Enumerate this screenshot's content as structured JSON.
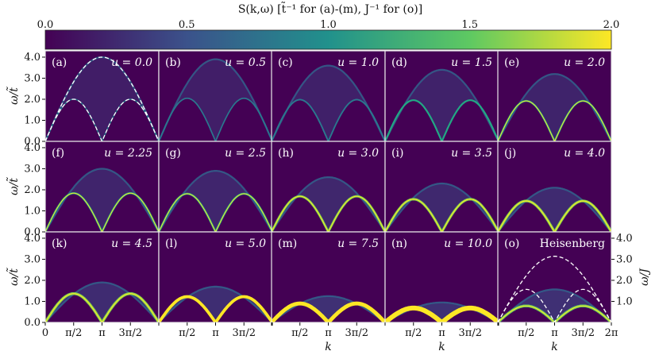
{
  "chart_data": {
    "type": "heatmap",
    "title": "S(k,ω) [t̃⁻¹ for (a)-(m), J⁻¹ for (o)]",
    "colorbar": {
      "range": [
        0.0,
        2.0
      ],
      "ticks": [
        "0.0",
        "0.5",
        "1.0",
        "1.5",
        "2.0"
      ],
      "colors": [
        "#440154",
        "#3b528b",
        "#21918c",
        "#5ec962",
        "#fde725"
      ]
    },
    "xlabel": "k",
    "ylabel": "ω/t̃",
    "ylabel_right": "ω/J",
    "x_ticks": [
      "0",
      "π/2",
      "π",
      "3π/2",
      "2π"
    ],
    "y_ticks": [
      "0.0",
      "1.0",
      "2.0",
      "3.0",
      "4.0"
    ],
    "xlim": [
      0,
      6.2832
    ],
    "ylim": [
      0,
      4.3
    ],
    "panels": [
      {
        "label": "(a)",
        "text": "u = 0.0",
        "u": 0.0,
        "peak_energy": 4.0
      },
      {
        "label": "(b)",
        "text": "u = 0.5",
        "u": 0.5,
        "peak_energy": 3.9
      },
      {
        "label": "(c)",
        "text": "u = 1.0",
        "u": 1.0,
        "peak_energy": 3.6
      },
      {
        "label": "(d)",
        "text": "u = 1.5",
        "u": 1.5,
        "peak_energy": 3.4
      },
      {
        "label": "(e)",
        "text": "u = 2.0",
        "u": 2.0,
        "peak_energy": 3.2
      },
      {
        "label": "(f)",
        "text": "u = 2.25",
        "u": 2.25,
        "peak_energy": 3.0
      },
      {
        "label": "(g)",
        "text": "u = 2.5",
        "u": 2.5,
        "peak_energy": 2.9
      },
      {
        "label": "(h)",
        "text": "u = 3.0",
        "u": 3.0,
        "peak_energy": 2.6
      },
      {
        "label": "(i)",
        "text": "u = 3.5",
        "u": 3.5,
        "peak_energy": 2.3
      },
      {
        "label": "(j)",
        "text": "u = 4.0",
        "u": 4.0,
        "peak_energy": 2.1
      },
      {
        "label": "(k)",
        "text": "u = 4.5",
        "u": 4.5,
        "peak_energy": 1.9
      },
      {
        "label": "(l)",
        "text": "u = 5.0",
        "u": 5.0,
        "peak_energy": 1.7
      },
      {
        "label": "(m)",
        "text": "u = 7.5",
        "u": 7.5,
        "peak_energy": 1.25
      },
      {
        "label": "(n)",
        "text": "u = 10.0",
        "u": 10.0,
        "peak_energy": 0.95
      },
      {
        "label": "(o)",
        "text": "Heisenberg",
        "u": null,
        "peak_energy": 1.57
      }
    ],
    "dashed_curves": {
      "a_upper": {
        "function": "4 sin(k/2)"
      },
      "a_lower": {
        "function": "2 |sin(k)|"
      },
      "o_upper": {
        "function": "π |sin(k/2)|"
      },
      "o_lower": {
        "function": "(π/2) |sin(k)|"
      }
    }
  }
}
